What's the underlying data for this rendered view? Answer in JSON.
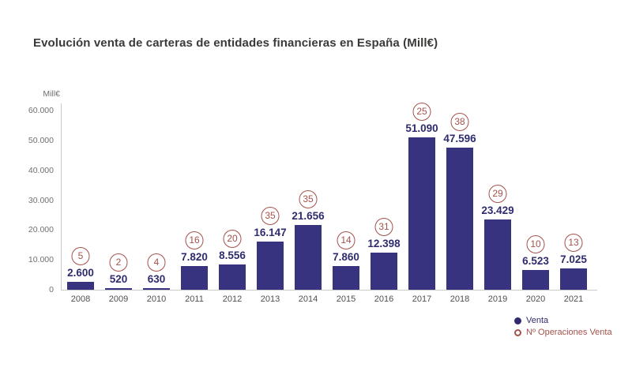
{
  "title": "Evolución venta de carteras de entidades financieras en España (Mill€)",
  "colors": {
    "bar": "#37337e",
    "value_label": "#2f2c6e",
    "operations": "#a3524c",
    "axis_line": "#c9c9c9",
    "tick_label": "#707070",
    "year_label": "#4f4f4f",
    "title": "#3a3a39"
  },
  "axis": {
    "unit_label": "Mill€",
    "tick_labels": [
      "60.000",
      "50.000",
      "40.000",
      "30.000",
      "20.000",
      "10.000",
      "0"
    ],
    "tick_values": [
      60000,
      50000,
      40000,
      30000,
      20000,
      10000,
      0
    ]
  },
  "legend": [
    {
      "label": "Venta",
      "marker": "filled-dot",
      "color": "#2f2c6e"
    },
    {
      "label": "Nº Operaciones Venta",
      "marker": "ring",
      "color": "#a3524c"
    }
  ],
  "chart_data": {
    "type": "bar",
    "title": "Evolución venta de carteras de entidades financieras en España (Mill€)",
    "xlabel": "",
    "ylabel": "Mill€",
    "ylim": [
      0,
      60000
    ],
    "grid": false,
    "legend_position": "bottom-right",
    "categories": [
      "2008",
      "2009",
      "2010",
      "2011",
      "2012",
      "2013",
      "2014",
      "2015",
      "2016",
      "2017",
      "2018",
      "2019",
      "2020",
      "2021"
    ],
    "series": [
      {
        "name": "Venta",
        "values": [
          2600,
          520,
          630,
          7820,
          8556,
          16147,
          21656,
          7860,
          12398,
          51090,
          47596,
          23429,
          6523,
          7025
        ],
        "value_labels": [
          "2.600",
          "520",
          "630",
          "7.820",
          "8.556",
          "16.147",
          "21.656",
          "7.860",
          "12.398",
          "51.090",
          "47.596",
          "23.429",
          "6.523",
          "7.025"
        ]
      },
      {
        "name": "Nº Operaciones Venta",
        "values": [
          5,
          2,
          4,
          16,
          20,
          35,
          35,
          14,
          31,
          25,
          38,
          29,
          10,
          13
        ]
      }
    ]
  }
}
